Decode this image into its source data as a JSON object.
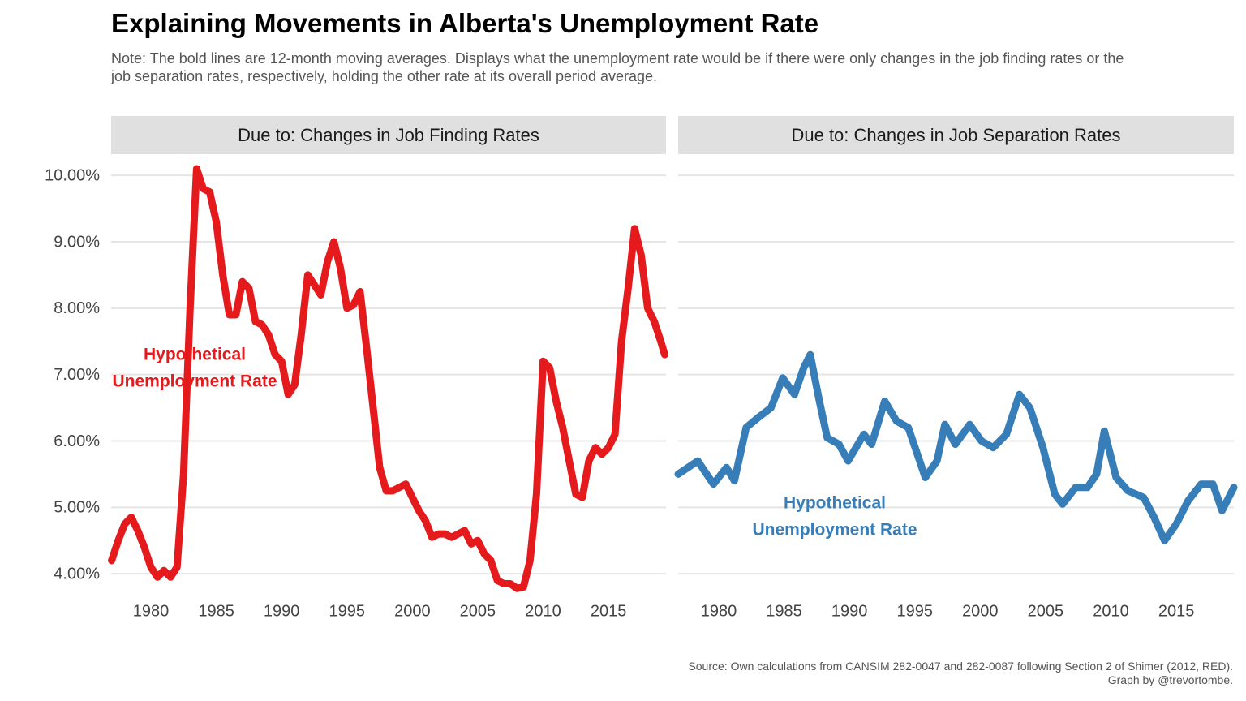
{
  "title": "Explaining Movements in Alberta's Unemployment Rate",
  "subtitle": "Note: The bold lines are 12-month moving averages. Displays what the unemployment rate would be if there were only changes in the job finding rates or the job separation rates, respectively, holding the other rate at its overall period average.",
  "caption": [
    "Source: Own calculations from CANSIM 282-0047 and 282-0087 following Section 2 of Shimer (2012, RED).",
    "Graph by @trevortombe."
  ],
  "chart_data": [
    {
      "type": "line",
      "title": "Due to: Changes in Job Finding Rates",
      "annotation": [
        "Hypothetical",
        "Unemployment Rate"
      ],
      "xlim": [
        1976.96,
        2019.4
      ],
      "xticks": [
        1980,
        1985,
        1990,
        1995,
        2000,
        2005,
        2010,
        2015
      ],
      "ylim": [
        3.66,
        10.32
      ],
      "yticks": [
        {
          "value": 4,
          "label": "4.00%"
        },
        {
          "value": 5,
          "label": "5.00%"
        },
        {
          "value": 6,
          "label": "6.00%"
        },
        {
          "value": 7,
          "label": "7.00%"
        },
        {
          "value": 8,
          "label": "8.00%"
        },
        {
          "value": 9,
          "label": "9.00%"
        },
        {
          "value": 10,
          "label": "10.00%"
        }
      ],
      "grid": true,
      "series": [
        {
          "name": "Hypothetical Unemployment Rate",
          "color": "#e41a1c",
          "x": [
            1977.0,
            1977.5,
            1978.0,
            1978.5,
            1979.0,
            1979.5,
            1980.0,
            1980.5,
            1981.0,
            1981.5,
            1982.0,
            1982.5,
            1983.0,
            1983.5,
            1984.0,
            1984.5,
            1985.0,
            1985.5,
            1986.0,
            1986.5,
            1987.0,
            1987.5,
            1988.0,
            1988.5,
            1989.0,
            1989.5,
            1990.0,
            1990.5,
            1991.0,
            1991.5,
            1992.0,
            1992.5,
            1993.0,
            1993.5,
            1994.0,
            1994.5,
            1995.0,
            1995.5,
            1996.0,
            1996.5,
            1997.0,
            1997.5,
            1998.0,
            1998.5,
            1999.0,
            1999.5,
            2000.0,
            2000.5,
            2001.0,
            2001.5,
            2002.0,
            2002.5,
            2003.0,
            2003.5,
            2004.0,
            2004.5,
            2005.0,
            2005.5,
            2006.0,
            2006.5,
            2007.0,
            2007.5,
            2008.0,
            2008.5,
            2009.0,
            2009.5,
            2010.0,
            2010.5,
            2011.0,
            2011.5,
            2012.0,
            2012.5,
            2013.0,
            2013.5,
            2014.0,
            2014.5,
            2015.0,
            2015.5,
            2016.0,
            2016.5,
            2017.0,
            2017.5,
            2018.0,
            2018.5,
            2019.0,
            2019.3
          ],
          "values": [
            4.2,
            4.5,
            4.75,
            4.85,
            4.65,
            4.4,
            4.1,
            3.95,
            4.05,
            3.95,
            4.1,
            5.5,
            8.0,
            10.1,
            9.8,
            9.75,
            9.3,
            8.5,
            7.9,
            7.9,
            8.4,
            8.3,
            7.8,
            7.75,
            7.6,
            7.3,
            7.2,
            6.7,
            6.85,
            7.6,
            8.5,
            8.35,
            8.2,
            8.7,
            9.0,
            8.6,
            8.0,
            8.05,
            8.25,
            7.4,
            6.5,
            5.6,
            5.25,
            5.25,
            5.3,
            5.35,
            5.15,
            4.95,
            4.8,
            4.55,
            4.6,
            4.6,
            4.55,
            4.6,
            4.65,
            4.45,
            4.5,
            4.3,
            4.2,
            3.9,
            3.85,
            3.85,
            3.78,
            3.8,
            4.2,
            5.2,
            7.2,
            7.1,
            6.6,
            6.2,
            5.7,
            5.2,
            5.15,
            5.7,
            5.9,
            5.8,
            5.9,
            6.1,
            7.5,
            8.3,
            9.2,
            8.8,
            8.0,
            7.8,
            7.5,
            7.3
          ]
        }
      ]
    },
    {
      "type": "line",
      "title": "Due to: Changes in Job Separation Rates",
      "annotation": [
        "Hypothetical",
        "Unemployment Rate"
      ],
      "xlim": [
        1976.9,
        2019.4
      ],
      "xticks": [
        1980,
        1985,
        1990,
        1995,
        2000,
        2005,
        2010,
        2015
      ],
      "grid": true,
      "series": [
        {
          "name": "Hypothetical Unemployment Rate",
          "color": "#377eb8",
          "x": [
            1976.9,
            1978.4,
            1979.6,
            1980.6,
            1981.2,
            1982.1,
            1983.0,
            1984.0,
            1984.9,
            1985.8,
            1986.5,
            1987.0,
            1987.7,
            1988.3,
            1989.2,
            1989.9,
            1991.1,
            1991.7,
            1992.7,
            1993.6,
            1994.5,
            1995.8,
            1996.7,
            1997.3,
            1998.1,
            1999.2,
            2000.1,
            2001.0,
            2002.0,
            2003.0,
            2003.8,
            2004.8,
            2005.7,
            2006.3,
            2007.3,
            2008.2,
            2008.9,
            2009.5,
            2010.4,
            2011.3,
            2012.5,
            2013.3,
            2014.1,
            2015.0,
            2015.9,
            2016.9,
            2017.8,
            2018.5,
            2019.4
          ],
          "values": [
            5.5,
            5.7,
            5.35,
            5.6,
            5.4,
            6.2,
            6.35,
            6.5,
            6.95,
            6.7,
            7.1,
            7.3,
            6.6,
            6.05,
            5.95,
            5.7,
            6.1,
            5.95,
            6.6,
            6.3,
            6.2,
            5.45,
            5.7,
            6.25,
            5.95,
            6.25,
            6.0,
            5.9,
            6.1,
            6.7,
            6.5,
            5.9,
            5.2,
            5.05,
            5.3,
            5.3,
            5.5,
            6.15,
            5.45,
            5.25,
            5.15,
            4.85,
            4.5,
            4.75,
            5.1,
            5.35,
            5.35,
            4.95,
            5.3
          ]
        }
      ]
    }
  ]
}
